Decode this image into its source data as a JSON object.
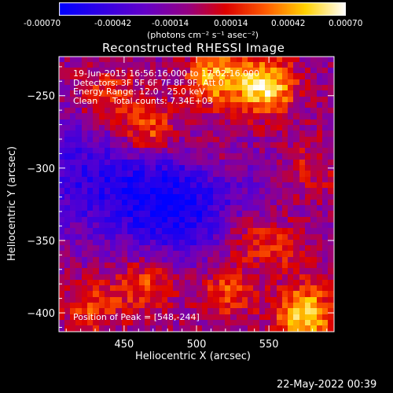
{
  "chart_data": {
    "type": "heatmap",
    "title": "Reconstructed RHESSI Image",
    "xlabel": "Heliocentric X (arcsec)",
    "ylabel": "Heliocentric Y (arcsec)",
    "xlim": [
      405,
      595
    ],
    "ylim": [
      -413,
      -223
    ],
    "x_ticks": [
      450,
      500,
      550
    ],
    "y_ticks": [
      -250,
      -300,
      -350,
      -400
    ],
    "colorbar": {
      "range": [
        -0.0007,
        0.0007
      ],
      "tick_labels": [
        "-0.00070",
        "-0.00042",
        "-0.00014",
        "0.00014",
        "0.00042",
        "0.00070"
      ],
      "unit_label": "(photons cm⁻² s⁻¹ asec⁻²)",
      "colormap": "blue-purple-red-yellow-white"
    },
    "annotations": {
      "time_range": "19-Jun-2015 16:56:16.000 to 17:02:16.000",
      "detectors": "Detectors: 3F 5F 6F 7F 8F 9F, Att 0",
      "energy": "Energy Range: 12.0 - 25.0 keV",
      "method": "Clean",
      "counts": "Total counts: 7.34E+03",
      "peak": "Position of Peak = [548,-244]"
    },
    "hotspots": [
      {
        "x": 548,
        "y": -244,
        "value": 0.0007
      },
      {
        "x": 575,
        "y": -402,
        "value": 0.00068
      },
      {
        "x": 513,
        "y": -238,
        "value": 0.00055
      },
      {
        "x": 468,
        "y": -276,
        "value": 0.00048
      },
      {
        "x": 440,
        "y": -252,
        "value": 0.00035
      },
      {
        "x": 465,
        "y": -380,
        "value": 0.0004
      },
      {
        "x": 520,
        "y": -385,
        "value": 0.00038
      },
      {
        "x": 428,
        "y": -395,
        "value": 0.00032
      },
      {
        "x": 555,
        "y": -355,
        "value": 0.0003
      },
      {
        "x": 530,
        "y": -345,
        "value": 0.00025
      },
      {
        "x": 580,
        "y": -300,
        "value": 0.00022
      },
      {
        "x": 510,
        "y": -290,
        "value": 0.0002
      }
    ],
    "minima": [
      {
        "x": 470,
        "y": -320,
        "value": -0.00045
      },
      {
        "x": 415,
        "y": -305,
        "value": -0.0003
      },
      {
        "x": 510,
        "y": -330,
        "value": -0.00028
      }
    ]
  },
  "datestamp": "22-May-2022 00:39"
}
